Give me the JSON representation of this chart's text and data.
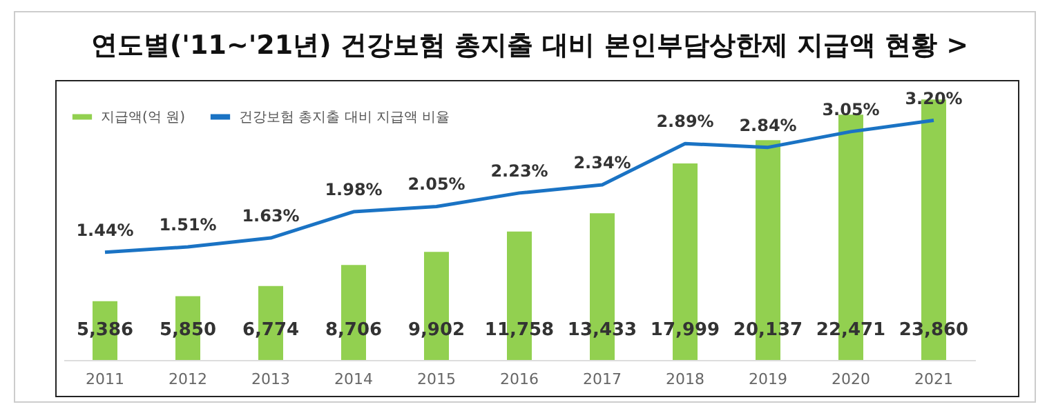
{
  "chart_data": {
    "type": "bar",
    "title": "연도별('11~'21년) 건강보험 총지출 대비 본인부담상한제 지급액 현황 >",
    "categories": [
      "2011",
      "2012",
      "2013",
      "2014",
      "2015",
      "2016",
      "2017",
      "2018",
      "2019",
      "2020",
      "2021"
    ],
    "series": [
      {
        "name": "지급액(억 원)",
        "color": "#92d050",
        "values": [
          5386,
          5850,
          6774,
          8706,
          9902,
          11758,
          13433,
          17999,
          20137,
          22471,
          23860
        ],
        "value_labels": [
          "5,386",
          "5,850",
          "6,774",
          "8,706",
          "9,902",
          "11,758",
          "13,433",
          "17,999",
          "20,137",
          "22,471",
          "23,860"
        ]
      },
      {
        "name": "건강보험 총지출 대비 지급액 비율",
        "type": "line",
        "axis": "y2",
        "color": "#1a73c4",
        "values": [
          1.44,
          1.51,
          1.63,
          1.98,
          2.05,
          2.23,
          2.34,
          2.89,
          2.84,
          3.05,
          3.2
        ],
        "value_labels": [
          "1.44%",
          "1.51%",
          "1.63%",
          "1.98%",
          "2.05%",
          "2.23%",
          "2.34%",
          "2.89%",
          "2.84%",
          "3.05%",
          "3.20%"
        ]
      }
    ],
    "tick_labels": "x",
    "data_labels": true,
    "legend": "top left",
    "grid": false
  }
}
